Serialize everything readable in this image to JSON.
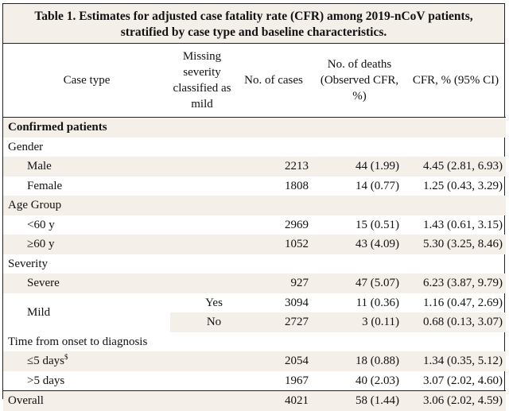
{
  "caption": {
    "line1": "Table 1. Estimates for adjusted case fatality rate (CFR) among 2019-nCoV patients,",
    "line2": "stratified by case type and baseline characteristics."
  },
  "headers": {
    "case_type": "Case type",
    "missing": "Missing severity classified as mild",
    "cases": "No. of cases",
    "deaths": "No. of deaths (Observed CFR, %)",
    "cfr": "CFR, % (95% CI)"
  },
  "sections": {
    "confirmed": "Confirmed patients",
    "gender": "Gender",
    "age": "Age Group",
    "severity": "Severity",
    "time": "Time from onset to diagnosis"
  },
  "rows": {
    "male": {
      "label": "Male",
      "cases": "2213",
      "deaths": "44 (1.99)",
      "cfr": "4.45 (2.81, 6.93)"
    },
    "female": {
      "label": "Female",
      "cases": "1808",
      "deaths": "14 (0.77)",
      "cfr": "1.25 (0.43, 3.29)"
    },
    "under60": {
      "label": "<60 y",
      "cases": "2969",
      "deaths": "15 (0.51)",
      "cfr": "1.43 (0.61, 3.15)"
    },
    "over60": {
      "label": "≥60 y",
      "cases": "1052",
      "deaths": "43 (4.09)",
      "cfr": "5.30 (3.25, 8.46)"
    },
    "severe": {
      "label": "Severe",
      "cases": "927",
      "deaths": "47 (5.07)",
      "cfr": "6.23 (3.87, 9.79)"
    },
    "mild_label": "Mild",
    "mild_yes": {
      "missing": "Yes",
      "cases": "3094",
      "deaths": "11 (0.36)",
      "cfr": "1.16 (0.47, 2.69)"
    },
    "mild_no": {
      "missing": "No",
      "cases": "2727",
      "deaths": "3 (0.11)",
      "cfr": "0.68 (0.13, 3.07)"
    },
    "le5": {
      "label": "≤5 days",
      "footnote": "$",
      "cases": "2054",
      "deaths": "18 (0.88)",
      "cfr": "1.34 (0.35, 5.12)"
    },
    "gt5": {
      "label": ">5 days",
      "cases": "1967",
      "deaths": "40 (2.03)",
      "cfr": "3.07 (2.02, 4.60)"
    },
    "overall": {
      "label": "Overall",
      "cases": "4021",
      "deaths": "58 (1.44)",
      "cfr": "3.06 (2.02, 4.59)"
    }
  }
}
